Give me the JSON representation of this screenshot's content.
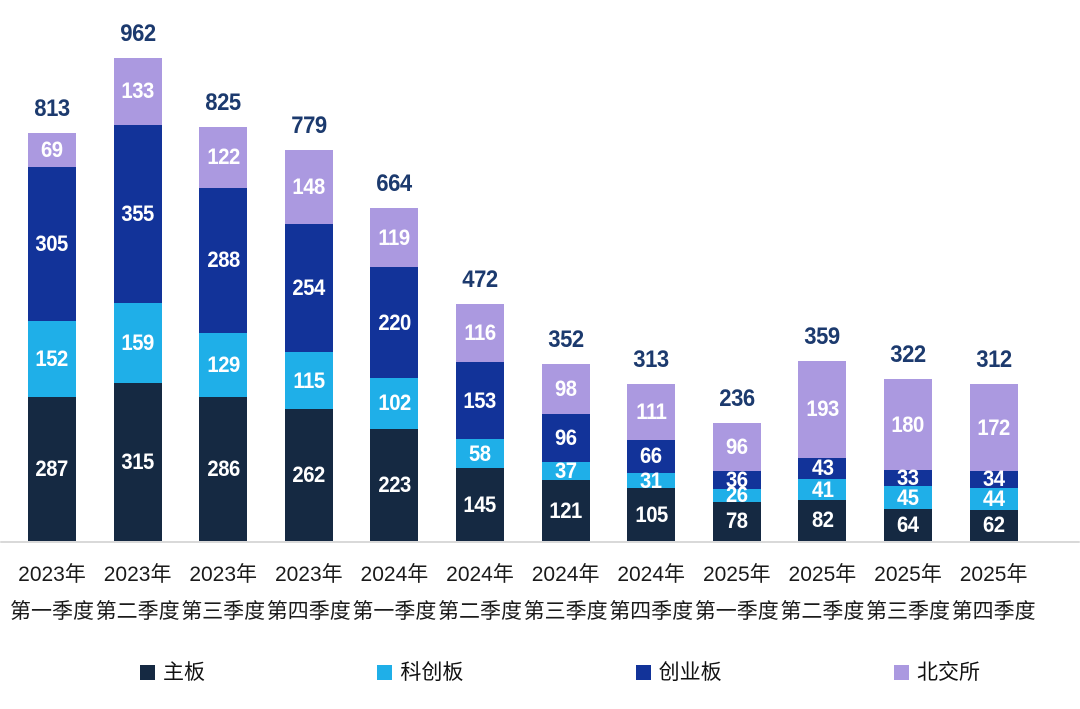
{
  "chart_data": {
    "type": "bar",
    "stacked": true,
    "title": "",
    "xlabel": "",
    "ylabel": "",
    "ylim": [
      0,
      962
    ],
    "grid": false,
    "legend_position": "bottom",
    "categories": [
      {
        "year": "2023年",
        "quarter": "第一季度"
      },
      {
        "year": "2023年",
        "quarter": "第二季度"
      },
      {
        "year": "2023年",
        "quarter": "第三季度"
      },
      {
        "year": "2023年",
        "quarter": "第四季度"
      },
      {
        "year": "2024年",
        "quarter": "第一季度"
      },
      {
        "year": "2024年",
        "quarter": "第二季度"
      },
      {
        "year": "2024年",
        "quarter": "第三季度"
      },
      {
        "year": "2024年",
        "quarter": "第四季度"
      },
      {
        "year": "2025年",
        "quarter": "第一季度"
      },
      {
        "year": "2025年",
        "quarter": "第二季度"
      },
      {
        "year": "2025年",
        "quarter": "第三季度"
      },
      {
        "year": "2025年",
        "quarter": "第四季度"
      }
    ],
    "series": [
      {
        "name": "主板",
        "slug": "main-board",
        "color": "#152942",
        "values": [
          287,
          315,
          286,
          262,
          223,
          145,
          121,
          105,
          78,
          82,
          64,
          62
        ]
      },
      {
        "name": "科创板",
        "slug": "star-market",
        "color": "#1fafe8",
        "values": [
          152,
          159,
          129,
          115,
          102,
          58,
          37,
          31,
          26,
          41,
          45,
          44
        ]
      },
      {
        "name": "创业板",
        "slug": "chinext",
        "color": "#123399",
        "values": [
          305,
          355,
          288,
          254,
          220,
          153,
          96,
          66,
          36,
          43,
          33,
          34
        ]
      },
      {
        "name": "北交所",
        "slug": "bse",
        "color": "#ab99e0",
        "values": [
          69,
          133,
          122,
          148,
          119,
          116,
          98,
          111,
          96,
          193,
          180,
          172
        ]
      }
    ],
    "totals": [
      813,
      962,
      825,
      779,
      664,
      472,
      352,
      313,
      236,
      359,
      322,
      312
    ]
  },
  "colors": {
    "background": "#ffffff",
    "total_label": "#1c3a6e",
    "segment_label": "#ffffff",
    "axis_line": "#d9d9d9",
    "category_label": "#1a1a1a",
    "legend_label": "#111111"
  }
}
